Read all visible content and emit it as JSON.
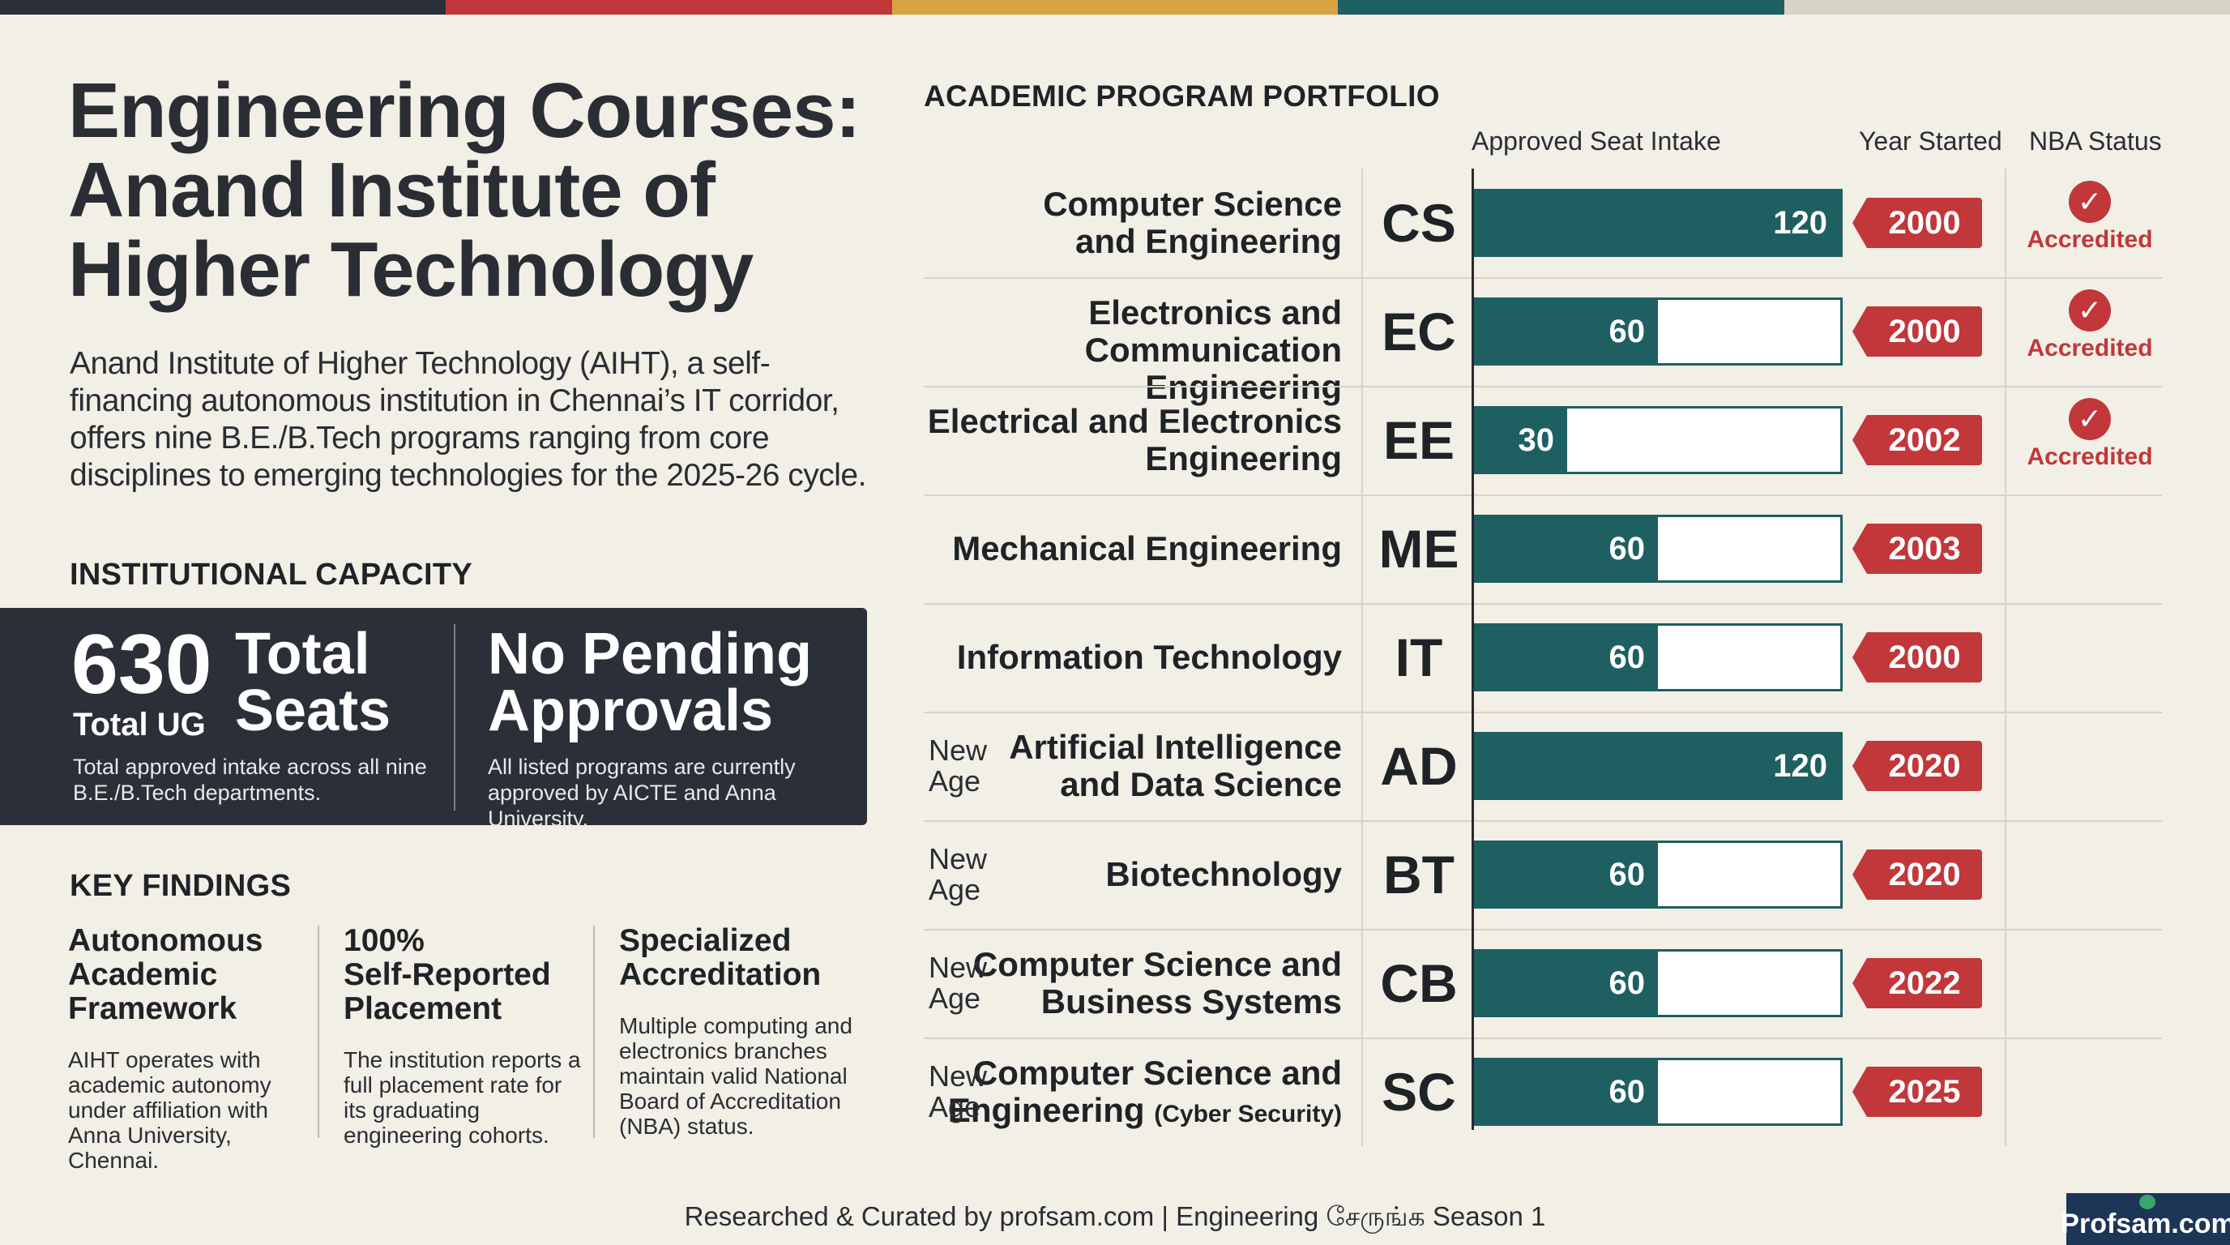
{
  "colors": {
    "stripe": [
      "#2b2f37",
      "#c1373a",
      "#d9a441",
      "#1e5f62",
      "#d8d4c5"
    ],
    "bar": "#1e5f62",
    "year_tag": "#c1373a",
    "dark_panel": "#2b2f37"
  },
  "title": "Engineering Courses:\nAnand Institute of\nHigher Technology",
  "intro": "Anand Institute of Higher Technology (AIHT), a self-financing autonomous institution in Chennai’s IT corridor, offers nine B.E./B.Tech programs ranging from core disciplines to emerging technologies for the 2025-26 cycle.",
  "capacity": {
    "label": "INSTITUTIONAL CAPACITY",
    "number": "630",
    "number_sub": "Total UG",
    "number_label": "Total\nSeats",
    "number_desc": "Total approved intake across all nine\nB.E./B.Tech departments.",
    "approval_title": "No Pending\nApprovals",
    "approval_desc": "All listed programs are currently\napproved by AICTE and Anna University."
  },
  "findings": {
    "label": "KEY FINDINGS",
    "items": [
      {
        "title": "Autonomous\nAcademic\nFramework",
        "text": "AIHT operates with\nacademic autonomy\nunder affiliation with\nAnna University, Chennai."
      },
      {
        "title": "100%\nSelf-Reported\nPlacement",
        "text": "The institution reports a\nfull placement rate for\nits graduating\nengineering cohorts."
      },
      {
        "title": "Specialized\nAccreditation",
        "text": "Multiple computing and\nelectronics branches\nmaintain valid National\nBoard of Accreditation\n(NBA) status."
      }
    ]
  },
  "portfolio": {
    "label": "ACADEMIC PROGRAM PORTFOLIO",
    "col_intake": "Approved Seat Intake",
    "col_year": "Year Started",
    "col_nba": "NBA Status",
    "max_intake": 120,
    "programs": [
      {
        "name": "Computer Science\nand Engineering",
        "code": "CS",
        "intake": 120,
        "year": "2000",
        "nba": "Accredited",
        "new_age": ""
      },
      {
        "name": "Electronics and\nCommunication Engineering",
        "code": "EC",
        "intake": 60,
        "year": "2000",
        "nba": "Accredited",
        "new_age": ""
      },
      {
        "name": "Electrical and Electronics\nEngineering",
        "code": "EE",
        "intake": 30,
        "year": "2002",
        "nba": "Accredited",
        "new_age": ""
      },
      {
        "name": "Mechanical Engineering",
        "code": "ME",
        "intake": 60,
        "year": "2003",
        "nba": "",
        "new_age": ""
      },
      {
        "name": "Information Technology",
        "code": "IT",
        "intake": 60,
        "year": "2000",
        "nba": "",
        "new_age": ""
      },
      {
        "name": "Artificial Intelligence\nand Data Science",
        "code": "AD",
        "intake": 120,
        "year": "2020",
        "nba": "",
        "new_age": "New\nAge"
      },
      {
        "name": "Biotechnology",
        "code": "BT",
        "intake": 60,
        "year": "2020",
        "nba": "",
        "new_age": "New\nAge"
      },
      {
        "name": "Computer Science and\nBusiness Systems",
        "code": "CB",
        "intake": 60,
        "year": "2022",
        "nba": "",
        "new_age": "New\nAge"
      },
      {
        "name": "Computer Science and\nEngineering",
        "name_suffix": "(Cyber Security)",
        "code": "SC",
        "intake": 60,
        "year": "2025",
        "nba": "",
        "new_age": "New\nAge"
      }
    ]
  },
  "footer": "Researched & Curated by profsam.com | Engineering சேருங்க Season 1",
  "logo": "Profsam.com",
  "icons": {
    "check": "check-circle-icon"
  }
}
